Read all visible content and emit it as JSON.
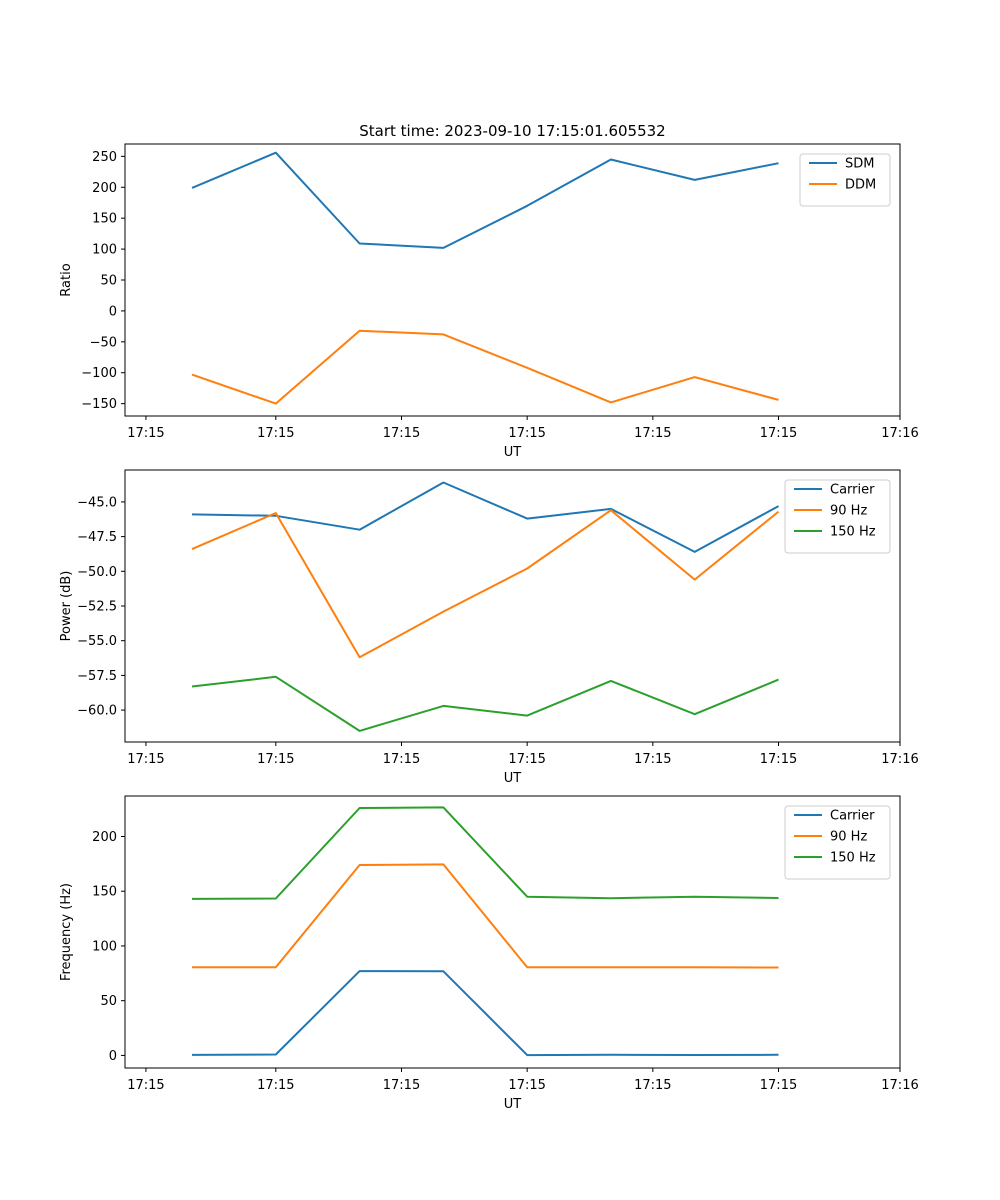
{
  "figure_title": "Start time: 2023-09-10 17:15:01.605532",
  "chart_data": [
    {
      "type": "line",
      "title": "Start time: 2023-09-10 17:15:01.605532",
      "xlabel": "UT",
      "ylabel": "Ratio",
      "x": [
        1,
        2,
        3,
        4,
        5,
        6,
        7,
        8
      ],
      "xlim": [
        0.2,
        9.45
      ],
      "xticks": [
        0.45,
        2,
        3.5,
        5,
        6.5,
        8,
        9.45
      ],
      "xtick_labels": [
        "17:15",
        "17:15",
        "17:15",
        "17:15",
        "17:15",
        "17:15",
        "17:16"
      ],
      "ylim": [
        -170,
        270
      ],
      "yticks": [
        -150,
        -100,
        -50,
        0,
        50,
        100,
        150,
        200,
        250
      ],
      "ytick_labels": [
        "−150",
        "−100",
        "−50",
        "0",
        "50",
        "100",
        "150",
        "200",
        "250"
      ],
      "legend_position": "top-right",
      "series": [
        {
          "name": "SDM",
          "color": "#1f77b4",
          "values": [
            199,
            256,
            109,
            102,
            170,
            245,
            212,
            239
          ]
        },
        {
          "name": "DDM",
          "color": "#ff7f0e",
          "values": [
            -103,
            -150,
            -32,
            -38,
            -92,
            -148,
            -107,
            -144
          ]
        }
      ]
    },
    {
      "type": "line",
      "xlabel": "UT",
      "ylabel": "Power (dB)",
      "x": [
        1,
        2,
        3,
        4,
        5,
        6,
        7,
        8
      ],
      "xlim": [
        0.2,
        9.45
      ],
      "xticks": [
        0.45,
        2,
        3.5,
        5,
        6.5,
        8,
        9.45
      ],
      "xtick_labels": [
        "17:15",
        "17:15",
        "17:15",
        "17:15",
        "17:15",
        "17:15",
        "17:16"
      ],
      "ylim": [
        -62.3,
        -42.7
      ],
      "yticks": [
        -60,
        -57.5,
        -55,
        -52.5,
        -50,
        -47.5,
        -45
      ],
      "ytick_labels": [
        "−60.0",
        "−57.5",
        "−55.0",
        "−52.5",
        "−50.0",
        "−47.5",
        "−45.0"
      ],
      "legend_position": "top-right",
      "series": [
        {
          "name": "Carrier",
          "color": "#1f77b4",
          "values": [
            -45.9,
            -46.0,
            -47.0,
            -43.6,
            -46.2,
            -45.5,
            -48.6,
            -45.3
          ]
        },
        {
          "name": "90 Hz",
          "color": "#ff7f0e",
          "values": [
            -48.4,
            -45.8,
            -56.2,
            -52.9,
            -49.8,
            -45.6,
            -50.6,
            -45.7
          ]
        },
        {
          "name": "150 Hz",
          "color": "#2ca02c",
          "values": [
            -58.3,
            -57.6,
            -61.5,
            -59.7,
            -60.4,
            -57.9,
            -60.3,
            -57.8
          ]
        }
      ]
    },
    {
      "type": "line",
      "xlabel": "UT",
      "ylabel": "Frequency (Hz)",
      "x": [
        1,
        2,
        3,
        4,
        5,
        6,
        7,
        8
      ],
      "xlim": [
        0.2,
        9.45
      ],
      "xticks": [
        0.45,
        2,
        3.5,
        5,
        6.5,
        8,
        9.45
      ],
      "xtick_labels": [
        "17:15",
        "17:15",
        "17:15",
        "17:15",
        "17:15",
        "17:15",
        "17:16"
      ],
      "ylim": [
        -11.5,
        237
      ],
      "yticks": [
        0,
        50,
        100,
        150,
        200
      ],
      "ytick_labels": [
        "0",
        "50",
        "100",
        "150",
        "200"
      ],
      "legend_position": "top-right",
      "series": [
        {
          "name": "Carrier",
          "color": "#1f77b4",
          "values": [
            0.5,
            0.8,
            77,
            76.8,
            0.3,
            0.6,
            0.4,
            0.6
          ]
        },
        {
          "name": "90 Hz",
          "color": "#ff7f0e",
          "values": [
            80.5,
            80.6,
            174,
            174.5,
            80.5,
            80.6,
            80.6,
            80.3
          ]
        },
        {
          "name": "150 Hz",
          "color": "#2ca02c",
          "values": [
            143,
            143.4,
            226,
            226.6,
            145,
            143.6,
            145,
            143.8
          ]
        }
      ]
    }
  ]
}
